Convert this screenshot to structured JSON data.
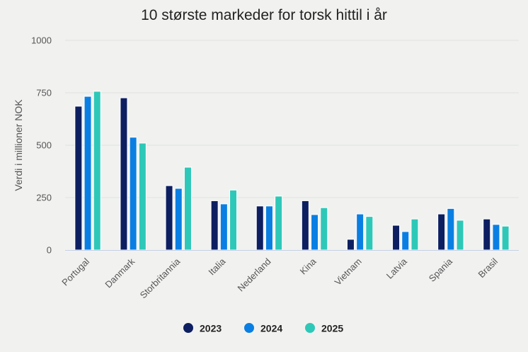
{
  "chart_data": {
    "type": "bar",
    "title": "10 største markeder for torsk hittil i år",
    "xlabel": "",
    "ylabel": "Verdi i millioner NOK",
    "ylim": [
      0,
      1000
    ],
    "yticks": [
      0,
      250,
      500,
      750,
      1000
    ],
    "ytick_labels": [
      "0",
      "250",
      "500",
      "750",
      "1000"
    ],
    "grid": true,
    "legend_position": "bottom",
    "categories": [
      "Portugal",
      "Danmark",
      "Storbritannia",
      "Italia",
      "Nederland",
      "Kina",
      "Vietnam",
      "Latvia",
      "Spania",
      "Brasil"
    ],
    "series": [
      {
        "name": "2023",
        "color": "#0d1f60",
        "values": [
          686,
          726,
          307,
          235,
          210,
          235,
          51,
          118,
          172,
          148
        ]
      },
      {
        "name": "2024",
        "color": "#0a7fe3",
        "values": [
          733,
          538,
          294,
          220,
          210,
          169,
          172,
          88,
          198,
          122
        ]
      },
      {
        "name": "2025",
        "color": "#2ec8b8",
        "values": [
          757,
          510,
          395,
          286,
          257,
          202,
          160,
          148,
          142,
          114
        ]
      }
    ]
  },
  "colors": {
    "background": "#f1f2f0",
    "gridline": "#e0e1df",
    "baseline": "#c5d0e6"
  }
}
